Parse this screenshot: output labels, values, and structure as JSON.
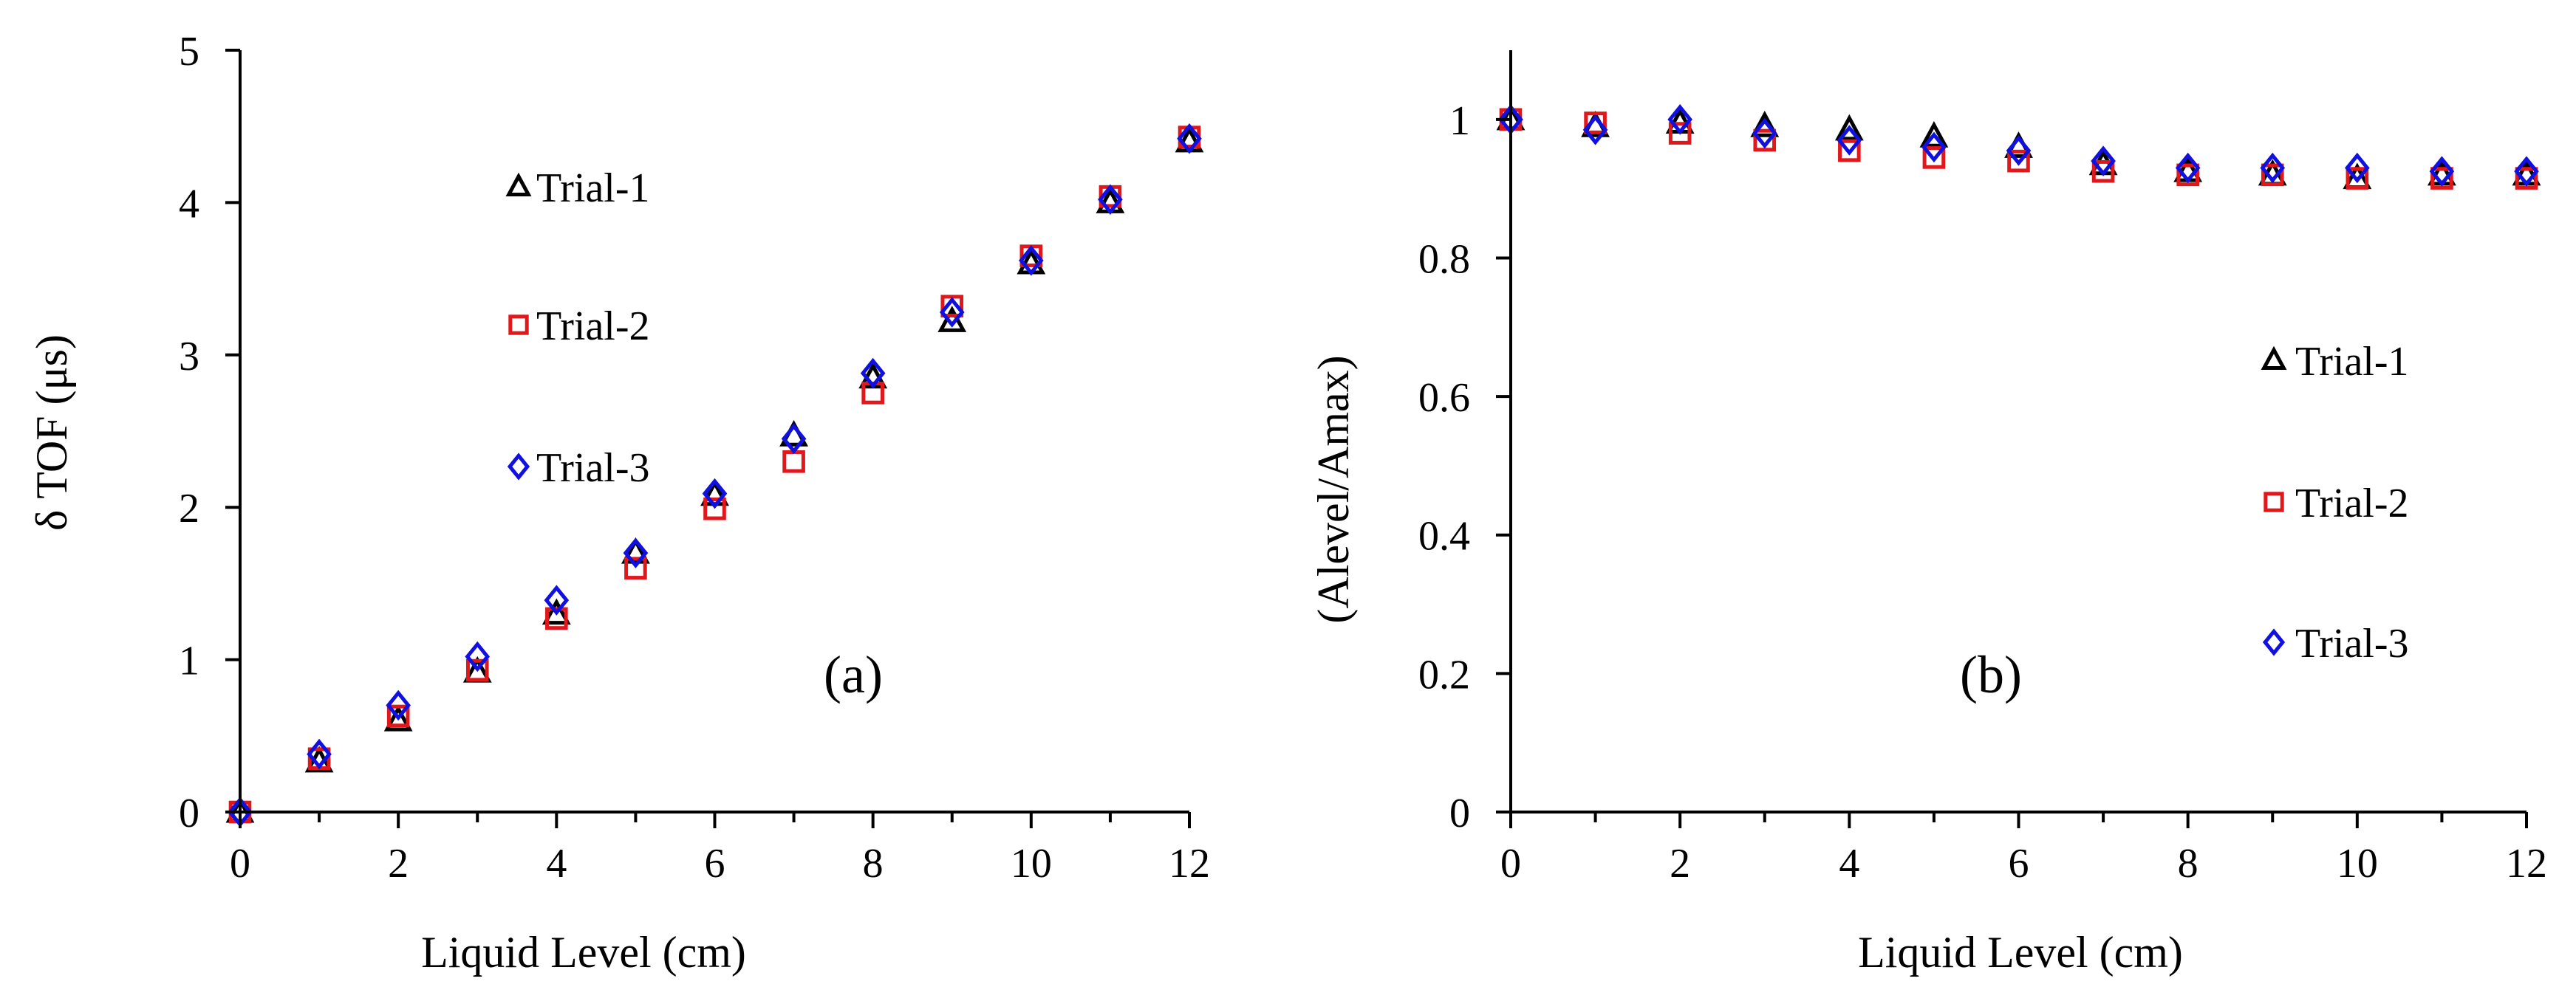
{
  "chart_data": [
    {
      "type": "scatter",
      "panel_label": "(a)",
      "xlabel": "Liquid Level (cm)",
      "ylabel": "δ TOF (μs)",
      "xlim": [
        0,
        12
      ],
      "ylim": [
        0,
        5
      ],
      "xticks": [
        0,
        2,
        4,
        6,
        8,
        10,
        12
      ],
      "yticks": [
        0,
        1,
        2,
        3,
        4,
        5
      ],
      "legend_position": "upper-left",
      "x": [
        0,
        1,
        2,
        3,
        4,
        5,
        6,
        7,
        8,
        9,
        10,
        11,
        12
      ],
      "series": [
        {
          "name": "Trial-1",
          "marker": "triangle",
          "color": "#000000",
          "values": [
            0,
            0.33,
            0.6,
            0.92,
            1.3,
            1.7,
            2.08,
            2.47,
            2.85,
            3.22,
            3.6,
            4.0,
            4.4
          ]
        },
        {
          "name": "Trial-2",
          "marker": "square",
          "color": "#e0181c",
          "values": [
            0,
            0.35,
            0.63,
            0.93,
            1.27,
            1.6,
            1.99,
            2.3,
            2.75,
            3.32,
            3.65,
            4.04,
            4.43
          ]
        },
        {
          "name": "Trial-3",
          "marker": "diamond",
          "color": "#1010e0",
          "values": [
            0,
            0.38,
            0.7,
            1.02,
            1.39,
            1.7,
            2.09,
            2.45,
            2.88,
            3.28,
            3.62,
            4.02,
            4.42
          ]
        }
      ]
    },
    {
      "type": "scatter",
      "panel_label": "(b)",
      "xlabel": "Liquid Level (cm)",
      "ylabel": "(Alevel/Amax)",
      "xlim": [
        0,
        12
      ],
      "ylim": [
        0,
        1.1
      ],
      "xticks": [
        0,
        2,
        4,
        6,
        8,
        10,
        12
      ],
      "yticks": [
        0,
        0.2,
        0.4,
        0.6,
        0.8,
        1
      ],
      "ytick_labels": [
        "0",
        "0.2",
        "0.4",
        "0.6",
        "0.8",
        "1"
      ],
      "legend_position": "right",
      "x": [
        0,
        1,
        2,
        3,
        4,
        5,
        6,
        7,
        8,
        9,
        10,
        11,
        12
      ],
      "series": [
        {
          "name": "Trial-1",
          "marker": "triangle",
          "color": "#000000",
          "values": [
            1.0,
            0.99,
            0.995,
            0.99,
            0.985,
            0.975,
            0.96,
            0.935,
            0.925,
            0.92,
            0.915,
            0.92,
            0.92
          ]
        },
        {
          "name": "Trial-2",
          "marker": "square",
          "color": "#e0181c",
          "values": [
            1.0,
            0.995,
            0.98,
            0.97,
            0.955,
            0.945,
            0.94,
            0.925,
            0.92,
            0.92,
            0.915,
            0.915,
            0.915
          ]
        },
        {
          "name": "Trial-3",
          "marker": "diamond",
          "color": "#1010e0",
          "values": [
            1.0,
            0.985,
            1.0,
            0.98,
            0.97,
            0.96,
            0.955,
            0.94,
            0.93,
            0.93,
            0.93,
            0.925,
            0.925
          ]
        }
      ]
    }
  ]
}
